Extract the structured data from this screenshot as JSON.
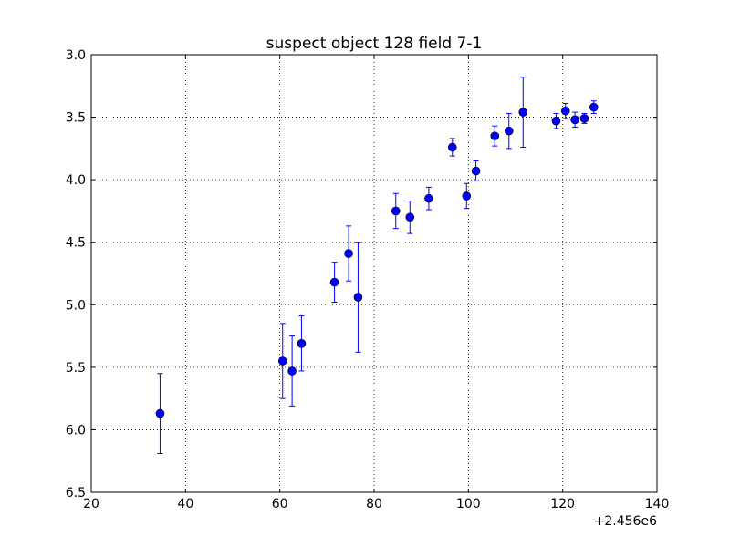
{
  "chart_data": {
    "type": "scatter",
    "title": "suspect object 128 field 7-1",
    "xlabel": "",
    "ylabel": "",
    "x_offset_label": "+2.456e6",
    "xlim": [
      20,
      140
    ],
    "ylim": [
      6.5,
      3.0
    ],
    "y_inverted": true,
    "grid": true,
    "marker_color": "#0000ff",
    "x_ticks": [
      "20",
      "40",
      "60",
      "80",
      "100",
      "120",
      "140"
    ],
    "y_ticks": [
      "3.0",
      "3.5",
      "4.0",
      "4.5",
      "5.0",
      "5.5",
      "6.0",
      "6.5"
    ],
    "series": [
      {
        "points": [
          {
            "x": 34.6,
            "y": 5.87,
            "err": 0.32
          },
          {
            "x": 60.6,
            "y": 5.45,
            "err": 0.3
          },
          {
            "x": 62.6,
            "y": 5.53,
            "err": 0.28
          },
          {
            "x": 64.6,
            "y": 5.31,
            "err": 0.22
          },
          {
            "x": 71.6,
            "y": 4.82,
            "err": 0.16
          },
          {
            "x": 74.6,
            "y": 4.59,
            "err": 0.22
          },
          {
            "x": 76.6,
            "y": 4.94,
            "err": 0.44
          },
          {
            "x": 84.6,
            "y": 4.25,
            "err": 0.14
          },
          {
            "x": 87.6,
            "y": 4.3,
            "err": 0.13
          },
          {
            "x": 91.6,
            "y": 4.15,
            "err": 0.09
          },
          {
            "x": 96.6,
            "y": 3.74,
            "err": 0.07
          },
          {
            "x": 99.6,
            "y": 4.13,
            "err": 0.1
          },
          {
            "x": 101.6,
            "y": 3.93,
            "err": 0.08
          },
          {
            "x": 105.6,
            "y": 3.65,
            "err": 0.08
          },
          {
            "x": 108.6,
            "y": 3.61,
            "err": 0.14
          },
          {
            "x": 111.6,
            "y": 3.46,
            "err": 0.28
          },
          {
            "x": 118.6,
            "y": 3.53,
            "err": 0.06
          },
          {
            "x": 120.6,
            "y": 3.45,
            "err": 0.06
          },
          {
            "x": 122.6,
            "y": 3.52,
            "err": 0.06
          },
          {
            "x": 124.6,
            "y": 3.51,
            "err": 0.04
          },
          {
            "x": 126.6,
            "y": 3.42,
            "err": 0.05
          }
        ]
      }
    ]
  }
}
